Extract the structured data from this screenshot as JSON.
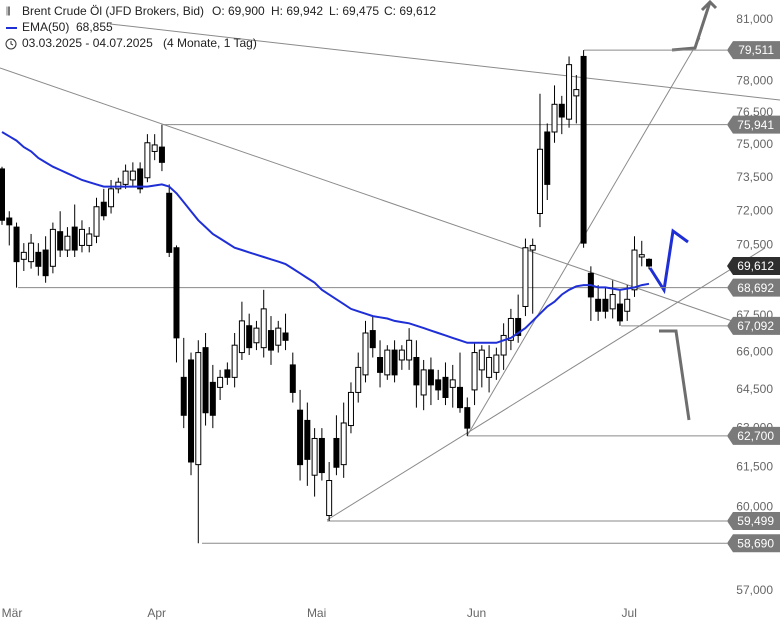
{
  "chart_data": {
    "type": "candlestick",
    "title": "Brent Crude Öl (JFD Brokers, Bid)",
    "ohlc_labels": [
      "O: 69,900",
      "H: 69,942",
      "L: 69,475",
      "C: 69,612"
    ],
    "period": "03.03.2025 - 04.07.2025",
    "period_note": "(4 Monate, 1 Tag)",
    "log_scale": true,
    "up_color": "#ffffff",
    "down_color": "#000000",
    "ylim": [
      56500,
      82000
    ],
    "yticks": [
      {
        "value": 81000,
        "label": "81,000"
      },
      {
        "value": 78000,
        "label": "78,000"
      },
      {
        "value": 76500,
        "label": "76,500"
      },
      {
        "value": 75000,
        "label": "75,000"
      },
      {
        "value": 73500,
        "label": "73,500"
      },
      {
        "value": 72000,
        "label": "72,000"
      },
      {
        "value": 70500,
        "label": "70,500"
      },
      {
        "value": 67500,
        "label": "67,500"
      },
      {
        "value": 66000,
        "label": "66,000"
      },
      {
        "value": 64500,
        "label": "64,500"
      },
      {
        "value": 63000,
        "label": "63,000"
      },
      {
        "value": 61500,
        "label": "61,500"
      },
      {
        "value": 60000,
        "label": "60,000"
      },
      {
        "value": 57000,
        "label": "57,000"
      }
    ],
    "categories": [
      "Mär",
      null,
      null,
      null,
      null,
      null,
      null,
      null,
      null,
      null,
      null,
      null,
      null,
      null,
      null,
      null,
      null,
      null,
      null,
      null,
      null,
      "Apr",
      null,
      null,
      null,
      null,
      null,
      null,
      null,
      null,
      null,
      null,
      null,
      null,
      null,
      null,
      null,
      null,
      null,
      null,
      null,
      null,
      null,
      "Mai",
      null,
      null,
      null,
      null,
      null,
      null,
      null,
      null,
      null,
      null,
      null,
      null,
      null,
      null,
      null,
      null,
      null,
      null,
      null,
      null,
      null,
      "Jun",
      null,
      null,
      null,
      null,
      null,
      null,
      null,
      null,
      null,
      null,
      null,
      null,
      null,
      null,
      null,
      null,
      null,
      null,
      null,
      null,
      "Jul",
      null,
      null,
      null
    ],
    "open": [
      73900,
      71700,
      71300,
      69900,
      69800,
      70200,
      70300,
      69600,
      71100,
      70300,
      71300,
      70500,
      70500,
      70900,
      72400,
      72200,
      73000,
      73200,
      73400,
      73900,
      73500,
      74700,
      74900,
      72800,
      70400,
      65000,
      65700,
      61600,
      66200,
      64800,
      64600,
      65300,
      65000,
      66000,
      67100,
      66400,
      66200,
      66900,
      66300,
      66800,
      65500,
      63700,
      63300,
      61200,
      62600,
      59700,
      62600,
      61600,
      63100,
      64400,
      65100,
      66900,
      65800,
      65100,
      66100,
      65700,
      65700,
      65800,
      64300,
      65300,
      64900,
      65000,
      64600,
      64600,
      63800,
      64500,
      65300,
      65000,
      65200,
      65900,
      66500,
      67400,
      67900,
      70300,
      71900,
      75600,
      75600,
      76900,
      76200,
      77300,
      79200,
      69300,
      68200,
      68200,
      67800,
      68000,
      67700,
      68600,
      70000,
      69900
    ],
    "high": [
      74000,
      72000,
      71500,
      70600,
      71000,
      70600,
      70900,
      71500,
      72000,
      71300,
      72300,
      71600,
      71300,
      72600,
      73000,
      73400,
      73500,
      74100,
      74200,
      74200,
      75500,
      75500,
      75941,
      73200,
      70500,
      66600,
      66000,
      66500,
      66800,
      65500,
      65300,
      65600,
      66800,
      68100,
      67600,
      67300,
      68600,
      67500,
      67300,
      67600,
      66000,
      64500,
      64000,
      63000,
      63000,
      61700,
      63500,
      64000,
      64800,
      66000,
      67300,
      67500,
      66500,
      66300,
      66500,
      66300,
      67000,
      66500,
      65700,
      65800,
      65300,
      65600,
      65500,
      66000,
      64200,
      66400,
      66300,
      66300,
      66200,
      67200,
      67800,
      68400,
      70800,
      70800,
      77400,
      76000,
      77800,
      77300,
      79200,
      78300,
      79511,
      69600,
      68800,
      68700,
      69000,
      68600,
      68800,
      70900,
      70700,
      69942
    ],
    "low": [
      71400,
      70500,
      68692,
      69400,
      69500,
      69200,
      68900,
      69300,
      70000,
      70000,
      70000,
      70200,
      70200,
      70600,
      71600,
      71900,
      72800,
      73000,
      73100,
      72800,
      73300,
      74300,
      73800,
      70000,
      65600,
      63000,
      61200,
      58690,
      63100,
      63000,
      64100,
      64700,
      64600,
      65700,
      65900,
      66100,
      65800,
      65500,
      66000,
      66100,
      64000,
      61000,
      60800,
      60400,
      61000,
      59499,
      61200,
      61100,
      62800,
      64000,
      64800,
      65800,
      64600,
      64900,
      64800,
      65300,
      65300,
      63800,
      63700,
      63900,
      64100,
      63900,
      63800,
      63600,
      62700,
      63900,
      64600,
      64400,
      64900,
      65300,
      66100,
      66400,
      67500,
      67600,
      71300,
      72500,
      75100,
      75500,
      75800,
      76000,
      70400,
      67300,
      67300,
      67400,
      67400,
      67092,
      67300,
      68300,
      69600,
      69475
    ],
    "close": [
      71600,
      71400,
      69800,
      70200,
      70600,
      69600,
      69200,
      71200,
      70300,
      70900,
      70300,
      71200,
      71000,
      72200,
      71800,
      73000,
      73300,
      73800,
      73800,
      73000,
      75100,
      75000,
      74200,
      70200,
      66600,
      63500,
      61700,
      66000,
      63600,
      63500,
      65000,
      65000,
      66300,
      67300,
      66200,
      67000,
      67800,
      66100,
      67000,
      66500,
      64400,
      61600,
      61800,
      62600,
      61300,
      61000,
      61500,
      63200,
      64400,
      65400,
      66800,
      66200,
      65200,
      66100,
      65100,
      66100,
      66500,
      64700,
      65300,
      64700,
      64500,
      64200,
      64900,
      63800,
      63000,
      66000,
      66100,
      65800,
      65900,
      66700,
      67400,
      66700,
      70400,
      70500,
      74800,
      73200,
      76900,
      76300,
      78800,
      77600,
      70600,
      68300,
      67700,
      67700,
      68400,
      67300,
      68200,
      70300,
      70100,
      69612
    ],
    "series": [
      {
        "name": "EMA(50)",
        "color": "#1f2fd6",
        "last_label": "68,855",
        "values": [
          75600,
          75400,
          75200,
          74900,
          74700,
          74400,
          74200,
          74000,
          73850,
          73700,
          73550,
          73400,
          73300,
          73200,
          73100,
          73100,
          73100,
          73100,
          73100,
          73100,
          73100,
          73150,
          73200,
          73100,
          72800,
          72400,
          72000,
          71600,
          71300,
          71000,
          70800,
          70600,
          70400,
          70300,
          70200,
          70100,
          70000,
          69900,
          69800,
          69700,
          69500,
          69300,
          69100,
          68900,
          68600,
          68400,
          68200,
          68000,
          67800,
          67700,
          67600,
          67500,
          67450,
          67400,
          67300,
          67250,
          67200,
          67100,
          67000,
          66900,
          66800,
          66700,
          66600,
          66500,
          66400,
          66400,
          66400,
          66400,
          66400,
          66500,
          66600,
          66800,
          67000,
          67300,
          67600,
          67900,
          68100,
          68400,
          68600,
          68750,
          68800,
          68800,
          68700,
          68700,
          68650,
          68600,
          68650,
          68700,
          68800,
          68855
        ]
      }
    ],
    "levels": {
      "values": [
        79511,
        75941,
        69612,
        68692,
        67092,
        62700,
        59499,
        58690
      ],
      "value_labels": [
        "79,511",
        "75,941",
        "69,612",
        "68,692",
        "67,092",
        "62,700",
        "59,499",
        "58,690"
      ],
      "colors": [
        "#7a7a7a",
        "#7a7a7a",
        "#2e2e2e",
        "#7a7a7a",
        "#7a7a7a",
        "#7a7a7a",
        "#7a7a7a",
        "#7a7a7a"
      ]
    }
  }
}
